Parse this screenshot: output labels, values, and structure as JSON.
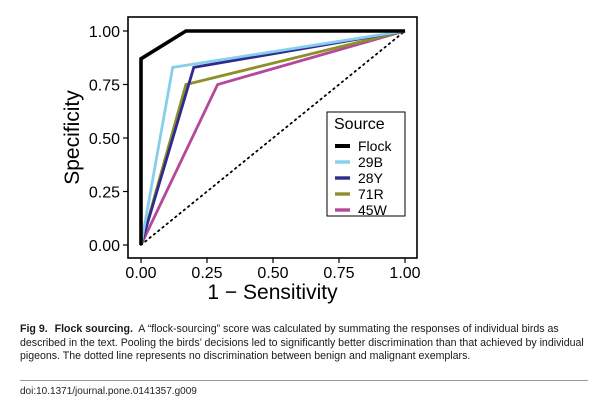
{
  "chart_data": {
    "type": "line",
    "xlabel": "1 − Sensitivity",
    "ylabel": "Specificity",
    "xlim": [
      0,
      1
    ],
    "ylim": [
      0,
      1
    ],
    "x_ticks": [
      "0.00",
      "0.25",
      "0.50",
      "0.75",
      "1.00"
    ],
    "y_ticks": [
      "0.00",
      "0.25",
      "0.50",
      "0.75",
      "1.00"
    ],
    "grid": false,
    "legend": {
      "title": "Source",
      "placement": "bottom-right"
    },
    "series": [
      {
        "name": "Flock",
        "color": "#000000",
        "x": [
          0,
          0,
          0.17,
          1
        ],
        "y": [
          0,
          0.87,
          1.0,
          1.0
        ]
      },
      {
        "name": "29B",
        "color": "#87ceeb",
        "x": [
          0,
          0.12,
          1
        ],
        "y": [
          0,
          0.83,
          1.0
        ]
      },
      {
        "name": "28Y",
        "color": "#2e2b8e",
        "x": [
          0,
          0.2,
          1
        ],
        "y": [
          0,
          0.83,
          1.0
        ]
      },
      {
        "name": "71R",
        "color": "#8f8f2a",
        "x": [
          0,
          0.17,
          1
        ],
        "y": [
          0,
          0.75,
          1.0
        ]
      },
      {
        "name": "45W",
        "color": "#b5489b",
        "x": [
          0,
          0.29,
          1
        ],
        "y": [
          0,
          0.75,
          1.0
        ]
      }
    ],
    "reference_line": {
      "style": "dotted",
      "x": [
        0,
        1
      ],
      "y": [
        0,
        1
      ]
    }
  },
  "caption": {
    "label": "Fig 9.",
    "title": "Flock sourcing.",
    "text": "A “flock-sourcing” score was calculated by summating the responses of individual birds as described in the text. Pooling the birds’ decisions led to significantly better discrimination than that achieved by individual pigeons. The dotted line represents no discrimination between benign and malignant exemplars."
  },
  "doi": "doi:10.1371/journal.pone.0141357.g009"
}
